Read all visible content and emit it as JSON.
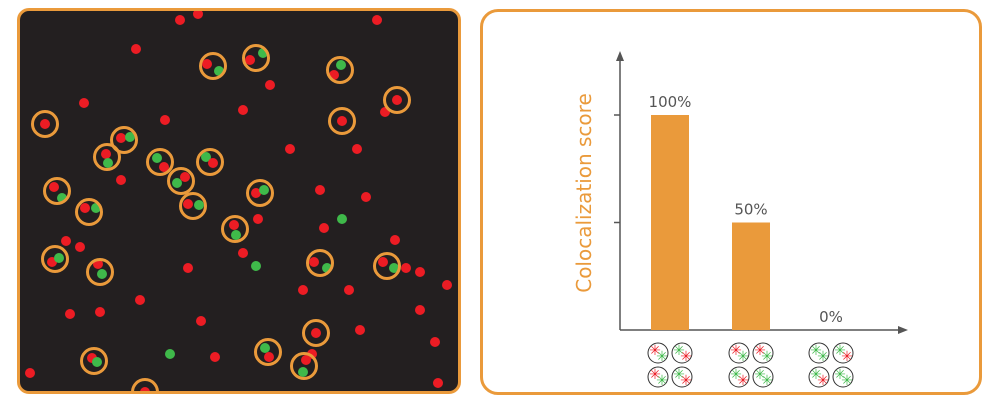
{
  "colors": {
    "accent": "#ea9a3b",
    "red": "#ec1c24",
    "green": "#3fb94a",
    "panel_dark": "#231f20",
    "axis": "#555555"
  },
  "chart_data": {
    "type": "bar",
    "ylabel": "Colocalization score",
    "categories": [
      "",
      "",
      ""
    ],
    "values": [
      100,
      50,
      0
    ],
    "value_labels": [
      "100%",
      "50%",
      "0%"
    ],
    "ylim": [
      0,
      100
    ],
    "grid": false
  },
  "legend_icons": [
    [
      [
        "red",
        "green"
      ],
      [
        "green",
        "red"
      ],
      [
        "red",
        "green"
      ],
      [
        "green",
        "red"
      ]
    ],
    [
      [
        "red",
        "green"
      ],
      [
        "red",
        "green"
      ],
      [
        "green",
        "red"
      ],
      [
        "green",
        "green"
      ]
    ],
    [
      [
        "green",
        "green"
      ],
      [
        "green",
        "red"
      ],
      [
        "green",
        "red"
      ],
      [
        "green",
        "green"
      ]
    ]
  ]
}
